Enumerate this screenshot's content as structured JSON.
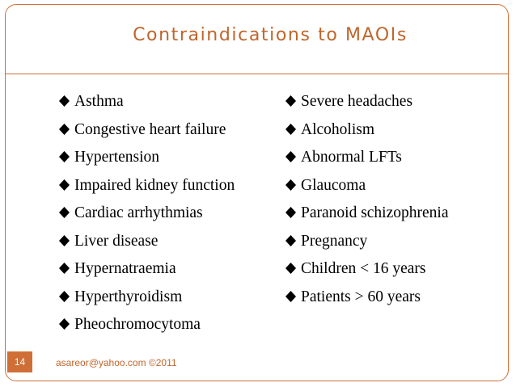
{
  "slide": {
    "title": "Contraindications to MAOIs",
    "left_items": [
      "Asthma",
      "Congestive heart failure",
      "Hypertension",
      "Impaired kidney function",
      "Cardiac arrhythmias",
      "Liver disease",
      "Hypernatraemia",
      "Hyperthyroidism",
      "Pheochromocytoma"
    ],
    "right_items": [
      "Severe headaches",
      "Alcoholism",
      "Abnormal LFTs",
      "Glaucoma",
      "Paranoid schizophrenia",
      "Pregnancy",
      "Children < 16 years",
      "Patients > 60 years"
    ],
    "page_number": "14",
    "footer": "asareor@yahoo.com ©2011"
  },
  "theme": {
    "accent": "#cf6f37",
    "text": "#000000"
  },
  "icons": {
    "bullet": "diamond-bullet-icon"
  }
}
